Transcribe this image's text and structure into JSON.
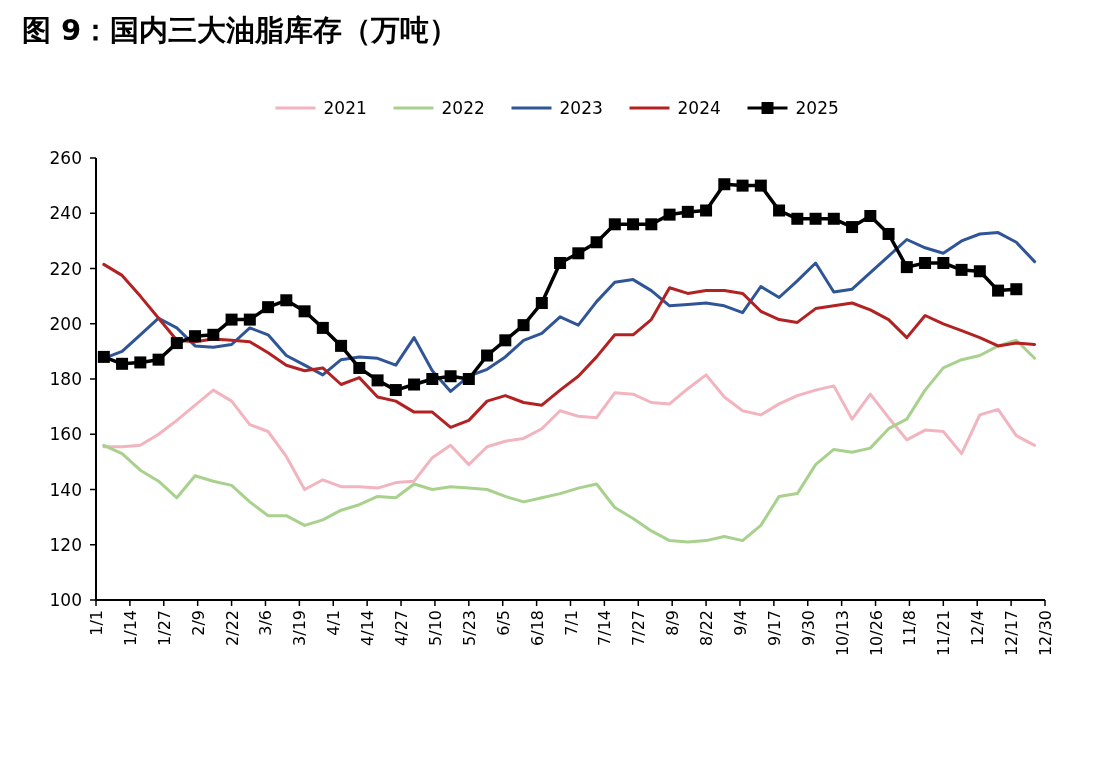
{
  "chart_data": {
    "type": "line",
    "title": "图 9：国内三大油脂库存（万吨）",
    "legend": "top",
    "grid": false,
    "x": [
      "--01-04",
      "--01-11",
      "--01-18",
      "--01-25",
      "--02-01",
      "--02-08",
      "--02-15",
      "--02-22",
      "--02-29",
      "--03-07",
      "--03-14",
      "--03-21",
      "--03-28",
      "--04-04",
      "--04-11",
      "--04-18",
      "--04-25",
      "--05-02",
      "--05-09",
      "--05-16",
      "--05-23",
      "--05-30",
      "--06-06",
      "--06-13",
      "--06-20",
      "--06-27",
      "--07-04",
      "--07-11",
      "--07-18",
      "--07-25",
      "--08-01",
      "--08-08",
      "--08-15",
      "--08-22",
      "--08-29",
      "--09-05",
      "--09-12",
      "--09-19",
      "--09-26",
      "--10-03",
      "--10-10",
      "--10-17",
      "--10-24",
      "--10-31",
      "--11-07",
      "--11-14",
      "--11-21",
      "--11-28",
      "--12-05",
      "--12-12",
      "--12-19",
      "--12-26"
    ],
    "xlim": [
      "--01-01",
      "--12-30"
    ],
    "xticks": [
      {
        "value": "--01-01",
        "label": "1/1"
      },
      {
        "value": "--01-14",
        "label": "1/14"
      },
      {
        "value": "--01-27",
        "label": "1/27"
      },
      {
        "value": "--02-09",
        "label": "2/9"
      },
      {
        "value": "--02-22",
        "label": "2/22"
      },
      {
        "value": "--03-06",
        "label": "3/6"
      },
      {
        "value": "--03-19",
        "label": "3/19"
      },
      {
        "value": "--04-01",
        "label": "4/1"
      },
      {
        "value": "--04-14",
        "label": "4/14"
      },
      {
        "value": "--04-27",
        "label": "4/27"
      },
      {
        "value": "--05-10",
        "label": "5/10"
      },
      {
        "value": "--05-23",
        "label": "5/23"
      },
      {
        "value": "--06-05",
        "label": "6/5"
      },
      {
        "value": "--06-18",
        "label": "6/18"
      },
      {
        "value": "--07-01",
        "label": "7/1"
      },
      {
        "value": "--07-14",
        "label": "7/14"
      },
      {
        "value": "--07-27",
        "label": "7/27"
      },
      {
        "value": "--08-09",
        "label": "8/9"
      },
      {
        "value": "--08-22",
        "label": "8/22"
      },
      {
        "value": "--09-04",
        "label": "9/4"
      },
      {
        "value": "--09-17",
        "label": "9/17"
      },
      {
        "value": "--09-30",
        "label": "9/30"
      },
      {
        "value": "--10-13",
        "label": "10/13"
      },
      {
        "value": "--10-26",
        "label": "10/26"
      },
      {
        "value": "--11-08",
        "label": "11/8"
      },
      {
        "value": "--11-21",
        "label": "11/21"
      },
      {
        "value": "--12-04",
        "label": "12/4"
      },
      {
        "value": "--12-17",
        "label": "12/17"
      },
      {
        "value": "--12-30",
        "label": "12/30"
      }
    ],
    "ylim": [
      100,
      260
    ],
    "yticks": [
      100,
      120,
      140,
      160,
      180,
      200,
      220,
      240,
      260
    ],
    "series": [
      {
        "name": "2021",
        "color": "#f2b4bf",
        "marker": "none",
        "values": [
          155.5,
          155.5,
          156,
          160,
          165,
          170.5,
          176,
          172,
          163.5,
          161,
          152,
          140,
          143.5,
          141,
          141,
          140.5,
          142.5,
          143,
          151.5,
          156,
          149,
          155.5,
          157.5,
          158.5,
          162,
          168.5,
          166.5,
          166,
          175,
          174.5,
          171.5,
          171,
          176.5,
          181.5,
          173.5,
          168.5,
          167,
          171,
          174,
          176,
          177.5,
          165.5,
          174.5,
          166,
          158,
          161.5,
          161,
          153,
          167,
          169,
          159.5,
          156
        ]
      },
      {
        "name": "2022",
        "color": "#a9d18e",
        "marker": "none",
        "values": [
          156,
          153,
          147,
          143,
          137,
          145,
          143,
          141.5,
          135.5,
          130.5,
          130.5,
          127,
          129,
          132.5,
          134.5,
          137.5,
          137,
          142,
          140,
          141,
          140.5,
          140,
          137.5,
          135.5,
          137,
          138.5,
          140.5,
          142,
          133.5,
          129.5,
          125,
          121.5,
          121,
          121.5,
          123,
          121.5,
          127,
          137.5,
          138.5,
          149,
          154.5,
          153.5,
          155,
          162,
          165.5,
          176,
          184,
          187,
          188.5,
          192,
          194,
          187.5
        ]
      },
      {
        "name": "2023",
        "color": "#2f5597",
        "marker": "none",
        "values": [
          187.5,
          190,
          196,
          202,
          198.5,
          192,
          191.5,
          192.5,
          198.5,
          196,
          188.5,
          185,
          181.5,
          187,
          188,
          187.5,
          185,
          195,
          183,
          175.5,
          181,
          183.5,
          188,
          194,
          196.5,
          202.5,
          199.5,
          208,
          215,
          216,
          212,
          206.5,
          207,
          207.5,
          206.5,
          204,
          213.5,
          209.5,
          215.5,
          222,
          211.5,
          212.5,
          218.5,
          224.5,
          230.5,
          227.5,
          225.5,
          230,
          232.5,
          233,
          229.5,
          222.5
        ]
      },
      {
        "name": "2024",
        "color": "#b22222",
        "marker": "none",
        "values": [
          221.5,
          217.5,
          210,
          202,
          194,
          193.5,
          194.5,
          194,
          193.5,
          189.5,
          185,
          183,
          184,
          178,
          180.5,
          173.5,
          172,
          168,
          168,
          162.5,
          165,
          172,
          174,
          171.5,
          170.5,
          176,
          181,
          188,
          196,
          196,
          201.5,
          213,
          211,
          212,
          212,
          211,
          204.5,
          201.5,
          200.5,
          205.5,
          206.5,
          207.5,
          205,
          201.5,
          195,
          203,
          200,
          197.5,
          195,
          192,
          193,
          192.5
        ]
      },
      {
        "name": "2025",
        "color": "#000000",
        "marker": "square",
        "values": [
          188,
          185.5,
          186,
          187,
          193,
          195.5,
          196,
          201.5,
          201.5,
          206,
          208.5,
          204.5,
          198.5,
          192,
          184,
          179.5,
          176,
          178,
          180,
          181,
          180,
          188.5,
          194,
          199.5,
          207.5,
          222,
          225.5,
          229.5,
          236,
          236,
          236,
          239.5,
          240.5,
          241,
          250.5,
          250,
          250,
          241,
          238,
          238,
          238,
          235,
          239,
          232.5,
          220.5,
          222,
          222,
          219.5,
          219,
          212,
          212.5,
          null
        ]
      }
    ]
  }
}
